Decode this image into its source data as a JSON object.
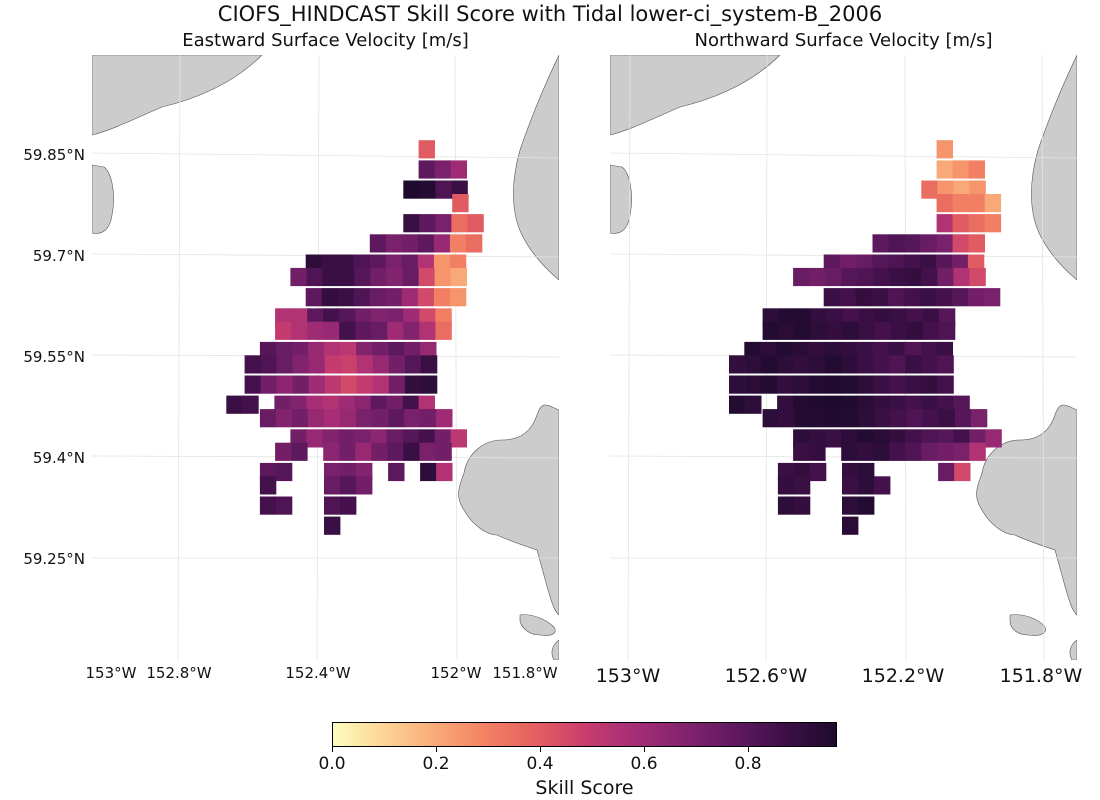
{
  "title": "CIOFS_HINDCAST Skill Score with Tidal lower-ci_system-B_2006",
  "panels": [
    {
      "title": "Eastward Surface Velocity [m/s]"
    },
    {
      "title": "Northward Surface Velocity [m/s]"
    }
  ],
  "lat_ticks": [
    "59.85°N",
    "59.7°N",
    "59.55°N",
    "59.4°N",
    "59.25°N"
  ],
  "lon_ticks_left": [
    "153°W",
    "152.8°W",
    "152.4°W",
    "152°W",
    "151.8°W"
  ],
  "lon_ticks_right": [
    "153°W",
    "152.6°W",
    "152.2°W",
    "151.8°W"
  ],
  "colorbar": {
    "label": "Skill Score",
    "ticks": [
      "0.0",
      "0.2",
      "0.4",
      "0.6",
      "0.8"
    ],
    "range": [
      0.0,
      0.97
    ],
    "colormap": "magma_r"
  },
  "colors": {
    "land": "#cccccc",
    "land_edge": "#555555",
    "grid": "#e0e0e0"
  },
  "chart_data": [
    {
      "type": "heatmap",
      "title": "Eastward Surface Velocity [m/s]",
      "value_range": [
        0.0,
        0.97
      ],
      "rows": [
        {
          "lat": 59.87,
          "lon_start": -152.16,
          "values": [
            0.4
          ]
        },
        {
          "lat": 59.84,
          "lon_start": -152.16,
          "values": [
            0.78,
            0.7,
            0.6
          ]
        },
        {
          "lat": 59.81,
          "lon_start": -152.21,
          "values": [
            0.97,
            0.95,
            0.82,
            0.88
          ]
        },
        {
          "lat": 59.79,
          "lon_start": -152.05,
          "values": [
            0.4
          ]
        },
        {
          "lat": 59.76,
          "lon_start": -152.21,
          "values": [
            0.88,
            0.78,
            0.7,
            0.35,
            0.4
          ]
        },
        {
          "lat": 59.73,
          "lon_start": -152.32,
          "values": [
            0.78,
            0.7,
            0.72,
            0.78,
            0.62,
            0.3,
            0.35
          ]
        },
        {
          "lat": 59.7,
          "lon_start": -152.53,
          "values": [
            0.92,
            0.88,
            0.88,
            0.82,
            0.78,
            0.7,
            0.75,
            0.55,
            0.25,
            0.3
          ]
        },
        {
          "lat": 59.68,
          "lon_start": -152.58,
          "values": [
            0.72,
            0.82,
            0.88,
            0.88,
            0.8,
            0.72,
            0.68,
            0.75,
            0.45,
            0.25,
            0.2
          ]
        },
        {
          "lat": 59.65,
          "lon_start": -152.53,
          "values": [
            0.78,
            0.9,
            0.88,
            0.82,
            0.75,
            0.72,
            0.6,
            0.45,
            0.3,
            0.25
          ]
        },
        {
          "lat": 59.62,
          "lon_start": -152.63,
          "values": [
            0.55,
            0.55,
            0.78,
            0.85,
            0.8,
            0.72,
            0.68,
            0.7,
            0.6,
            0.45,
            0.3
          ]
        },
        {
          "lat": 59.6,
          "lon_start": -152.63,
          "values": [
            0.5,
            0.55,
            0.6,
            0.62,
            0.85,
            0.78,
            0.75,
            0.6,
            0.68,
            0.55,
            0.35
          ]
        },
        {
          "lat": 59.57,
          "lon_start": -152.68,
          "values": [
            0.8,
            0.75,
            0.72,
            0.62,
            0.55,
            0.52,
            0.68,
            0.72,
            0.78,
            0.72,
            0.62
          ]
        },
        {
          "lat": 59.55,
          "lon_start": -152.73,
          "values": [
            0.85,
            0.82,
            0.75,
            0.68,
            0.62,
            0.5,
            0.48,
            0.55,
            0.62,
            0.72,
            0.8,
            0.88
          ]
        },
        {
          "lat": 59.52,
          "lon_start": -152.73,
          "values": [
            0.85,
            0.72,
            0.65,
            0.72,
            0.6,
            0.52,
            0.45,
            0.5,
            0.55,
            0.72,
            0.9,
            0.92
          ]
        },
        {
          "lat": 59.49,
          "lon_start": -152.79,
          "values": [
            0.88,
            0.85,
            0.0,
            0.72,
            0.68,
            0.58,
            0.55,
            0.6,
            0.65,
            0.78,
            0.72,
            0.85,
            0.55
          ]
        },
        {
          "lat": 59.47,
          "lon_start": -152.68,
          "values": [
            0.75,
            0.68,
            0.72,
            0.62,
            0.58,
            0.62,
            0.7,
            0.72,
            0.78,
            0.7,
            0.72,
            0.6
          ]
        },
        {
          "lat": 59.44,
          "lon_start": -152.58,
          "values": [
            0.72,
            0.62,
            0.68,
            0.72,
            0.7,
            0.65,
            0.75,
            0.8,
            0.85,
            0.72,
            0.52
          ]
        },
        {
          "lat": 59.42,
          "lon_start": -152.63,
          "values": [
            0.72,
            0.78,
            0.0,
            0.65,
            0.72,
            0.62,
            0.72,
            0.78,
            0.88,
            0.7,
            0.72
          ]
        },
        {
          "lat": 59.39,
          "lon_start": -152.68,
          "values": [
            0.78,
            0.8,
            0.0,
            0.0,
            0.7,
            0.72,
            0.68,
            0.0,
            0.78,
            0.0,
            0.92,
            0.55
          ]
        },
        {
          "lat": 59.37,
          "lon_start": -152.68,
          "values": [
            0.85,
            0.0,
            0.0,
            0.0,
            0.75,
            0.8,
            0.72
          ]
        },
        {
          "lat": 59.34,
          "lon_start": -152.68,
          "values": [
            0.85,
            0.82,
            0.0,
            0.0,
            0.82,
            0.85
          ]
        },
        {
          "lat": 59.31,
          "lon_start": -152.47,
          "values": [
            0.88
          ]
        }
      ]
    },
    {
      "type": "heatmap",
      "title": "Northward Surface Velocity [m/s]",
      "value_range": [
        0.0,
        0.97
      ],
      "rows": [
        {
          "lat": 59.87,
          "lon_start": -152.16,
          "values": [
            0.25
          ]
        },
        {
          "lat": 59.84,
          "lon_start": -152.16,
          "values": [
            0.2,
            0.25,
            0.3
          ]
        },
        {
          "lat": 59.81,
          "lon_start": -152.21,
          "values": [
            0.35,
            0.25,
            0.2,
            0.25
          ]
        },
        {
          "lat": 59.79,
          "lon_start": -152.16,
          "values": [
            0.35,
            0.3,
            0.3,
            0.2
          ]
        },
        {
          "lat": 59.76,
          "lon_start": -152.16,
          "values": [
            0.55,
            0.4,
            0.35,
            0.3
          ]
        },
        {
          "lat": 59.73,
          "lon_start": -152.37,
          "values": [
            0.78,
            0.82,
            0.8,
            0.75,
            0.7,
            0.45,
            0.4
          ]
        },
        {
          "lat": 59.7,
          "lon_start": -152.53,
          "values": [
            0.78,
            0.72,
            0.75,
            0.8,
            0.82,
            0.85,
            0.88,
            0.8,
            0.72,
            0.4
          ]
        },
        {
          "lat": 59.68,
          "lon_start": -152.63,
          "values": [
            0.75,
            0.72,
            0.75,
            0.8,
            0.82,
            0.85,
            0.88,
            0.9,
            0.85,
            0.72,
            0.55,
            0.45
          ]
        },
        {
          "lat": 59.65,
          "lon_start": -152.53,
          "values": [
            0.88,
            0.85,
            0.9,
            0.88,
            0.82,
            0.85,
            0.88,
            0.85,
            0.8,
            0.72,
            0.7
          ]
        },
        {
          "lat": 59.62,
          "lon_start": -152.73,
          "values": [
            0.92,
            0.95,
            0.95,
            0.9,
            0.88,
            0.85,
            0.88,
            0.9,
            0.88,
            0.85,
            0.88,
            0.8
          ]
        },
        {
          "lat": 59.6,
          "lon_start": -152.73,
          "values": [
            0.95,
            0.93,
            0.95,
            0.92,
            0.9,
            0.92,
            0.88,
            0.85,
            0.88,
            0.9,
            0.85,
            0.82
          ]
        },
        {
          "lat": 59.57,
          "lon_start": -152.79,
          "values": [
            0.95,
            0.92,
            0.95,
            0.93,
            0.9,
            0.92,
            0.9,
            0.88,
            0.85,
            0.88,
            0.82,
            0.85,
            0.88
          ]
        },
        {
          "lat": 59.55,
          "lon_start": -152.84,
          "values": [
            0.9,
            0.92,
            0.95,
            0.92,
            0.9,
            0.92,
            0.95,
            0.92,
            0.88,
            0.85,
            0.82,
            0.88,
            0.85,
            0.82
          ]
        },
        {
          "lat": 59.52,
          "lon_start": -152.84,
          "values": [
            0.92,
            0.93,
            0.95,
            0.9,
            0.92,
            0.95,
            0.96,
            0.95,
            0.92,
            0.88,
            0.85,
            0.88,
            0.9,
            0.85
          ]
        },
        {
          "lat": 59.49,
          "lon_start": -152.84,
          "values": [
            0.95,
            0.92,
            0.0,
            0.9,
            0.95,
            0.96,
            0.97,
            0.96,
            0.93,
            0.9,
            0.88,
            0.85,
            0.88,
            0.85,
            0.8
          ]
        },
        {
          "lat": 59.47,
          "lon_start": -152.73,
          "values": [
            0.92,
            0.9,
            0.95,
            0.95,
            0.96,
            0.95,
            0.92,
            0.88,
            0.85,
            0.82,
            0.85,
            0.88,
            0.8,
            0.7
          ]
        },
        {
          "lat": 59.44,
          "lon_start": -152.63,
          "values": [
            0.92,
            0.9,
            0.88,
            0.92,
            0.95,
            0.93,
            0.9,
            0.85,
            0.82,
            0.8,
            0.85,
            0.72,
            0.62
          ]
        },
        {
          "lat": 59.42,
          "lon_start": -152.63,
          "values": [
            0.88,
            0.9,
            0.0,
            0.92,
            0.9,
            0.92,
            0.85,
            0.82,
            0.75,
            0.72,
            0.7,
            0.55
          ]
        },
        {
          "lat": 59.39,
          "lon_start": -152.68,
          "values": [
            0.88,
            0.9,
            0.85,
            0.0,
            0.9,
            0.92,
            0.0,
            0.0,
            0.0,
            0.0,
            0.75,
            0.45
          ]
        },
        {
          "lat": 59.37,
          "lon_start": -152.68,
          "values": [
            0.9,
            0.88,
            0.0,
            0.0,
            0.88,
            0.92,
            0.85
          ]
        },
        {
          "lat": 59.34,
          "lon_start": -152.68,
          "values": [
            0.92,
            0.9,
            0.0,
            0.0,
            0.92,
            0.95
          ]
        },
        {
          "lat": 59.31,
          "lon_start": -152.47,
          "values": [
            0.93
          ]
        }
      ]
    }
  ]
}
